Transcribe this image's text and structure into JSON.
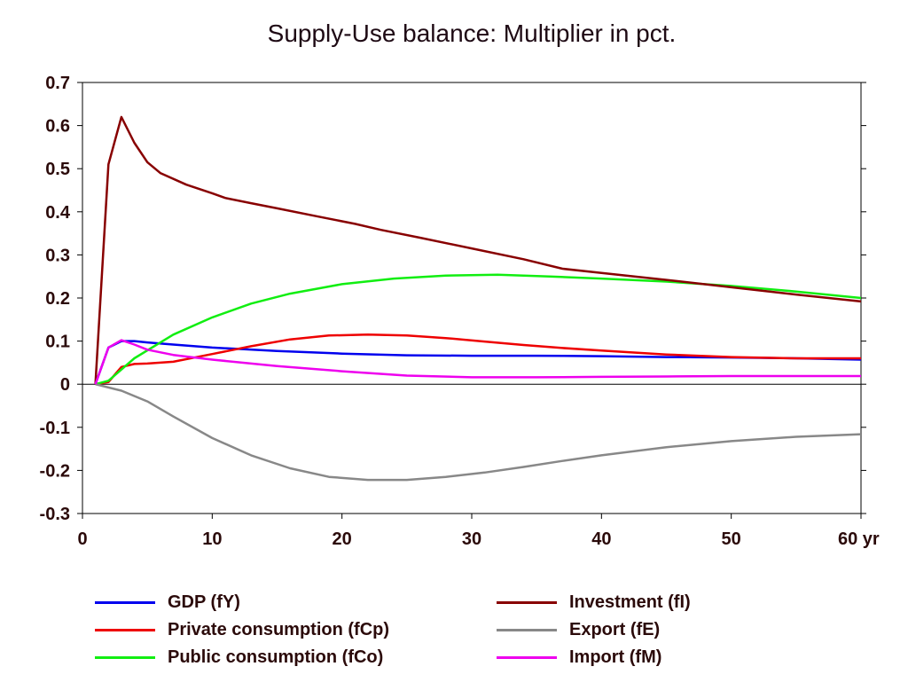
{
  "chart_data": {
    "type": "line",
    "title": "Supply-Use balance: Multiplier in pct.",
    "xlabel": "yr",
    "ylabel": "",
    "xlim": [
      0,
      60
    ],
    "ylim": [
      -0.3,
      0.7
    ],
    "x_ticks": [
      "0",
      "10",
      "20",
      "30",
      "40",
      "50",
      "60 yr"
    ],
    "x_tick_values": [
      0,
      10,
      20,
      30,
      40,
      50,
      60
    ],
    "y_ticks": [
      "0.7",
      "0.6",
      "0.5",
      "0.4",
      "0.3",
      "0.2",
      "0.1",
      "0",
      "-0.1",
      "-0.2",
      "-0.3"
    ],
    "y_tick_values": [
      0.7,
      0.6,
      0.5,
      0.4,
      0.3,
      0.2,
      0.1,
      0,
      -0.1,
      -0.2,
      -0.3
    ],
    "grid": false,
    "legend_position": "bottom",
    "series": [
      {
        "name": "GDP (fY)",
        "color": "#0000ee",
        "x": [
          1,
          2,
          3,
          4,
          5,
          7,
          10,
          15,
          20,
          25,
          30,
          35,
          40,
          45,
          50,
          55,
          60
        ],
        "y": [
          0,
          0.085,
          0.1,
          0.1,
          0.097,
          0.092,
          0.085,
          0.077,
          0.071,
          0.067,
          0.066,
          0.066,
          0.065,
          0.063,
          0.062,
          0.06,
          0.057
        ]
      },
      {
        "name": "Private consumption (fCp)",
        "color": "#ee0000",
        "x": [
          1,
          2,
          3,
          4,
          5,
          7,
          10,
          13,
          16,
          19,
          22,
          25,
          28,
          31,
          34,
          37,
          40,
          45,
          50,
          55,
          60
        ],
        "y": [
          0,
          0.005,
          0.04,
          0.047,
          0.048,
          0.052,
          0.07,
          0.088,
          0.104,
          0.113,
          0.115,
          0.113,
          0.107,
          0.099,
          0.091,
          0.084,
          0.078,
          0.069,
          0.063,
          0.06,
          0.06
        ]
      },
      {
        "name": "Public consumption (fCo)",
        "color": "#11ee11",
        "x": [
          1,
          2,
          4,
          7,
          10,
          13,
          16,
          20,
          24,
          28,
          32,
          36,
          40,
          45,
          50,
          55,
          60
        ],
        "y": [
          0,
          0.008,
          0.06,
          0.115,
          0.155,
          0.187,
          0.21,
          0.232,
          0.245,
          0.252,
          0.254,
          0.25,
          0.245,
          0.238,
          0.228,
          0.215,
          0.2
        ]
      },
      {
        "name": "Investment (fI)",
        "color": "#880000",
        "x": [
          1,
          2,
          3,
          4,
          5,
          6,
          8,
          10,
          11,
          13,
          15,
          18,
          21,
          23,
          26,
          30,
          34,
          37,
          40,
          45,
          50,
          55,
          60
        ],
        "y": [
          0,
          0.51,
          0.62,
          0.56,
          0.515,
          0.49,
          0.463,
          0.443,
          0.432,
          0.42,
          0.408,
          0.39,
          0.372,
          0.358,
          0.34,
          0.315,
          0.29,
          0.268,
          0.258,
          0.242,
          0.225,
          0.208,
          0.192
        ]
      },
      {
        "name": "Export (fE)",
        "color": "#888888",
        "x": [
          1,
          3,
          5,
          7,
          10,
          13,
          16,
          19,
          22,
          25,
          28,
          31,
          34,
          37,
          40,
          45,
          50,
          55,
          60
        ],
        "y": [
          0,
          -0.015,
          -0.04,
          -0.075,
          -0.125,
          -0.165,
          -0.195,
          -0.215,
          -0.222,
          -0.222,
          -0.215,
          -0.205,
          -0.192,
          -0.178,
          -0.165,
          -0.146,
          -0.132,
          -0.122,
          -0.116
        ]
      },
      {
        "name": "Import (fM)",
        "color": "#ee00ee",
        "x": [
          1,
          2,
          3,
          4,
          5,
          7,
          10,
          15,
          20,
          25,
          30,
          35,
          40,
          45,
          50,
          55,
          60
        ],
        "y": [
          0,
          0.085,
          0.102,
          0.092,
          0.08,
          0.068,
          0.057,
          0.042,
          0.03,
          0.02,
          0.016,
          0.016,
          0.017,
          0.018,
          0.019,
          0.019,
          0.019
        ]
      }
    ]
  }
}
